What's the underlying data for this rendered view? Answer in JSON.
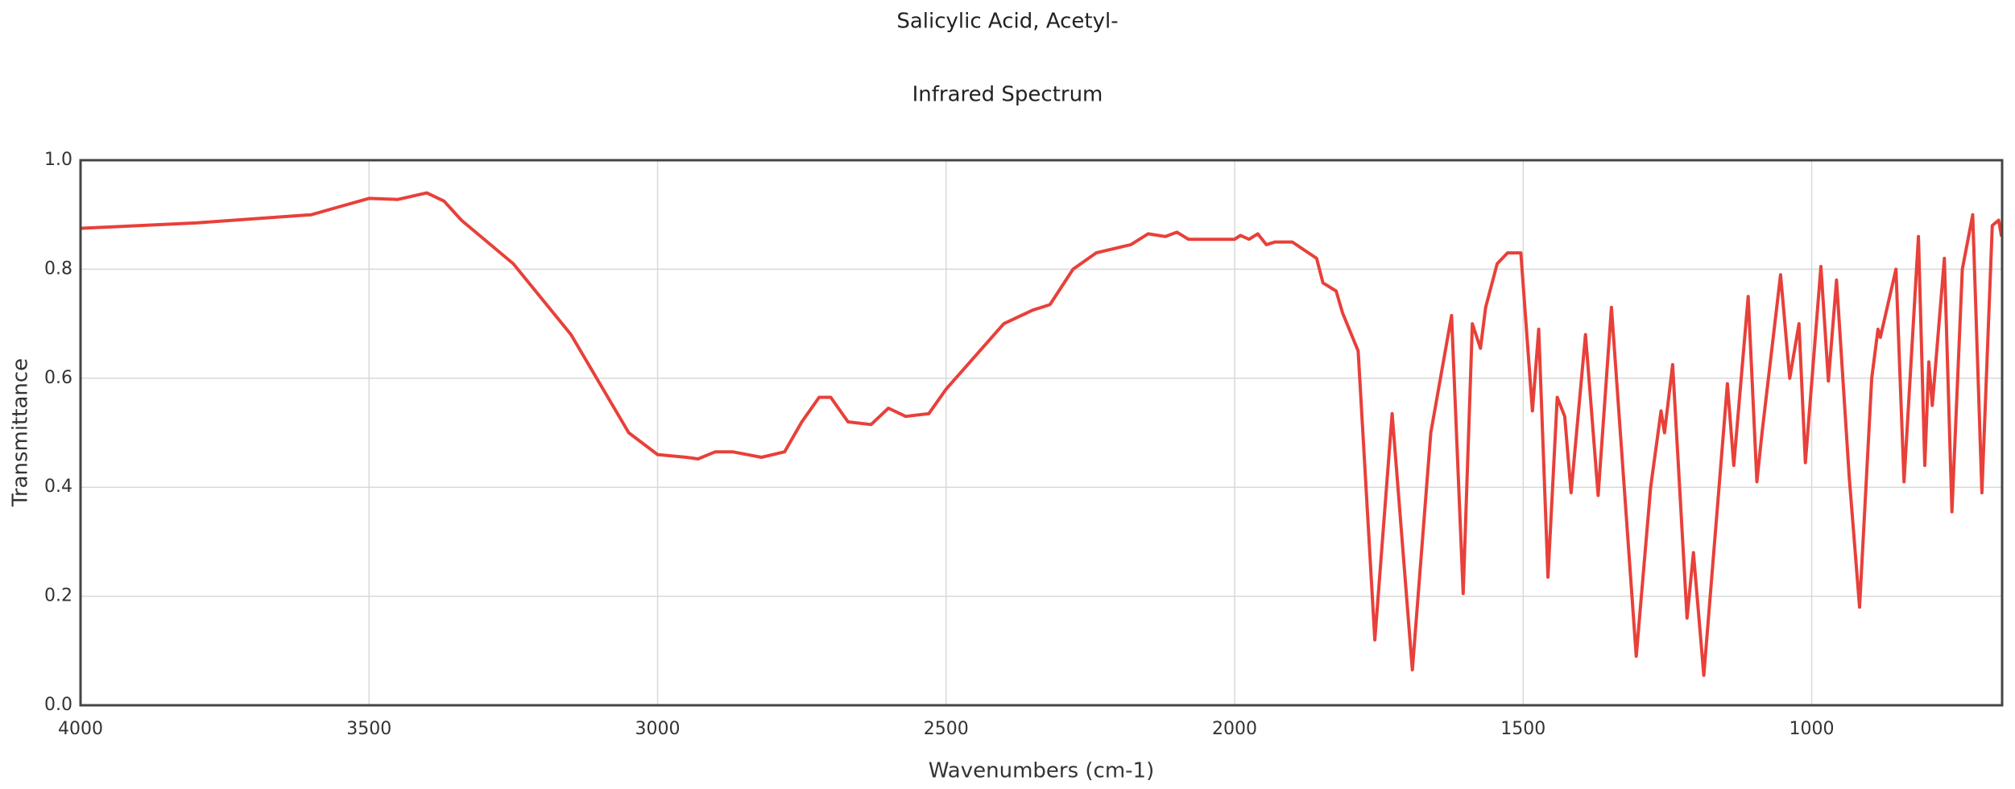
{
  "chart_data": {
    "type": "line",
    "title": "Salicylic Acid, Acetyl-",
    "subtitle": "Infrared Spectrum",
    "x_label": "Wavenumbers (cm-1)",
    "y_label": "Transmittance",
    "x": [
      4000,
      3800,
      3600,
      3550,
      3500,
      3450,
      3400,
      3370,
      3340,
      3250,
      3150,
      3050,
      3000,
      2950,
      2930,
      2900,
      2870,
      2820,
      2780,
      2750,
      2720,
      2700,
      2670,
      2630,
      2600,
      2570,
      2530,
      2500,
      2450,
      2400,
      2350,
      2320,
      2280,
      2240,
      2180,
      2150,
      2120,
      2100,
      2080,
      2000,
      1990,
      1975,
      1960,
      1945,
      1930,
      1900,
      1858,
      1847,
      1824,
      1813,
      1786,
      1757,
      1727,
      1692,
      1660,
      1624,
      1604,
      1588,
      1574,
      1565,
      1545,
      1527,
      1504,
      1484,
      1473,
      1457,
      1441,
      1428,
      1417,
      1392,
      1370,
      1347,
      1304,
      1279,
      1261,
      1255,
      1241,
      1216,
      1205,
      1187,
      1146,
      1135,
      1110,
      1095,
      1086,
      1054,
      1038,
      1022,
      1011,
      984,
      971,
      957,
      935,
      917,
      896,
      885,
      881,
      854,
      840,
      815,
      804,
      797,
      791,
      770,
      757,
      739,
      721,
      705,
      687,
      676,
      671
    ],
    "series": [
      {
        "name": "Transmittance",
        "color": "#e8403a",
        "values": [
          0.875,
          0.885,
          0.9,
          0.915,
          0.93,
          0.928,
          0.94,
          0.925,
          0.89,
          0.81,
          0.68,
          0.5,
          0.46,
          0.455,
          0.452,
          0.465,
          0.465,
          0.455,
          0.465,
          0.52,
          0.565,
          0.565,
          0.52,
          0.515,
          0.545,
          0.53,
          0.535,
          0.58,
          0.64,
          0.7,
          0.725,
          0.735,
          0.8,
          0.83,
          0.845,
          0.865,
          0.86,
          0.868,
          0.855,
          0.855,
          0.862,
          0.855,
          0.865,
          0.845,
          0.85,
          0.85,
          0.82,
          0.775,
          0.76,
          0.72,
          0.65,
          0.12,
          0.535,
          0.065,
          0.5,
          0.715,
          0.205,
          0.7,
          0.655,
          0.73,
          0.81,
          0.83,
          0.83,
          0.54,
          0.69,
          0.235,
          0.565,
          0.53,
          0.39,
          0.68,
          0.385,
          0.73,
          0.09,
          0.4,
          0.54,
          0.5,
          0.625,
          0.16,
          0.28,
          0.055,
          0.59,
          0.44,
          0.75,
          0.41,
          0.5,
          0.79,
          0.6,
          0.7,
          0.445,
          0.805,
          0.595,
          0.78,
          0.42,
          0.18,
          0.6,
          0.69,
          0.675,
          0.8,
          0.41,
          0.86,
          0.44,
          0.63,
          0.55,
          0.82,
          0.355,
          0.8,
          0.9,
          0.39,
          0.88,
          0.89,
          0.86
        ]
      }
    ],
    "xlim": [
      4000,
      670
    ],
    "xticks": [
      4000,
      3500,
      3000,
      2500,
      2000,
      1500,
      1000
    ],
    "ylim": [
      0,
      1
    ],
    "yticks": [
      {
        "value": 0,
        "label": "0.0"
      },
      0.2,
      0.4,
      0.6,
      0.8,
      {
        "value": 1,
        "label": "1.0"
      }
    ],
    "grid": true
  }
}
